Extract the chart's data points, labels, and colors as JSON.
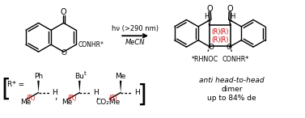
{
  "bg_color": "#ffffff",
  "text_color": "#000000",
  "red_color": "#cc0000",
  "fig_width": 3.77,
  "fig_height": 1.46,
  "arrow_text_top": "hν (>290 nm)",
  "arrow_text_bottom": "MeCN",
  "product_label1": "*RHNOC",
  "product_label2": "CONHR*",
  "dimer_line1": "anti head-to-head",
  "dimer_line2": "dimer",
  "dimer_line3": "up to 84% de",
  "r_star_label": "R* = ",
  "r_group1_top": "Ph",
  "r_group1_stereo": "(R)",
  "r_group1_bottom": "Me",
  "r_group2_top": "Bu",
  "r_group2_sup": "t",
  "r_group2_stereo": "(R)",
  "r_group2_bottom": "Me",
  "r_group3_top": "Me",
  "r_group3_stereo": "(S)",
  "r_group3_bottom": "CO₂Me",
  "H_str": "H",
  "comma_str": " , ",
  "O_str": "O",
  "CONHR_str": "CONHR*"
}
